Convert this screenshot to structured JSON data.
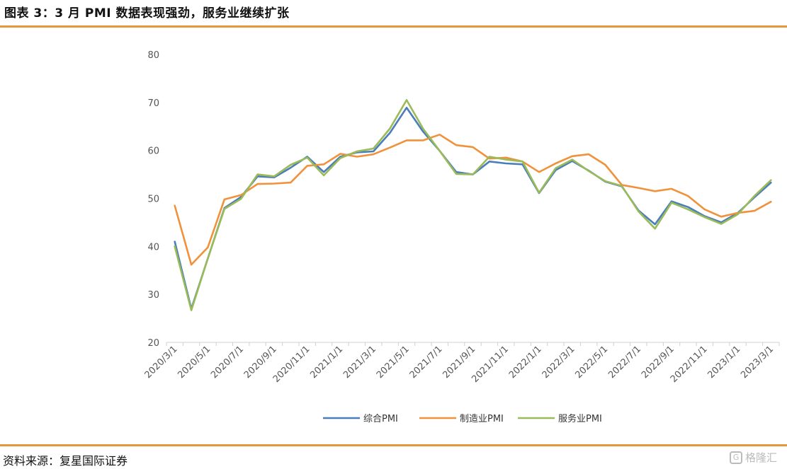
{
  "header": {
    "title": "图表 3：3 月 PMI 数据表现强劲，服务业继续扩张"
  },
  "footer": {
    "source": "资料来源：复星国际证券",
    "watermark": "格隆汇"
  },
  "chart_data": {
    "type": "line",
    "ylim": [
      20,
      80
    ],
    "yticks": [
      20,
      30,
      40,
      50,
      60,
      70,
      80
    ],
    "grid": false,
    "legend_position": "bottom",
    "x": [
      "2020/3/1",
      "2020/4/1",
      "2020/5/1",
      "2020/6/1",
      "2020/7/1",
      "2020/8/1",
      "2020/9/1",
      "2020/10/1",
      "2020/11/1",
      "2020/12/1",
      "2021/1/1",
      "2021/2/1",
      "2021/3/1",
      "2021/4/1",
      "2021/5/1",
      "2021/6/1",
      "2021/7/1",
      "2021/8/1",
      "2021/9/1",
      "2021/10/1",
      "2021/11/1",
      "2021/12/1",
      "2022/1/1",
      "2022/2/1",
      "2022/3/1",
      "2022/4/1",
      "2022/5/1",
      "2022/6/1",
      "2022/7/1",
      "2022/8/1",
      "2022/9/1",
      "2022/10/1",
      "2022/11/1",
      "2022/12/1",
      "2023/1/1",
      "2023/2/1",
      "2023/3/1"
    ],
    "xtick_labels": [
      "2020/3/1",
      "2020/5/1",
      "2020/7/1",
      "2020/9/1",
      "2020/11/1",
      "2021/1/1",
      "2021/3/1",
      "2021/5/1",
      "2021/7/1",
      "2021/9/1",
      "2021/11/1",
      "2022/1/1",
      "2022/3/1",
      "2022/5/1",
      "2022/7/1",
      "2022/9/1",
      "2022/11/1",
      "2023/1/1",
      "2023/3/1"
    ],
    "series": [
      {
        "name": "综合PMI",
        "color": "#4a7ebb",
        "values": [
          41.0,
          27.0,
          37.5,
          48.0,
          50.3,
          54.6,
          54.4,
          56.4,
          58.7,
          55.5,
          58.7,
          59.6,
          59.8,
          63.7,
          68.9,
          63.9,
          59.9,
          55.5,
          55.0,
          57.7,
          57.3,
          57.1,
          51.1,
          55.9,
          57.8,
          55.8,
          53.5,
          52.5,
          47.5,
          44.6,
          49.4,
          48.2,
          46.3,
          45.0,
          47.0,
          50.2,
          53.3
        ]
      },
      {
        "name": "制造业PMI",
        "color": "#f0923b",
        "values": [
          48.5,
          36.2,
          39.8,
          49.8,
          50.7,
          53.0,
          53.1,
          53.3,
          56.8,
          57.1,
          59.3,
          58.7,
          59.2,
          60.6,
          62.1,
          62.1,
          63.3,
          61.1,
          60.7,
          58.3,
          58.5,
          57.7,
          55.5,
          57.3,
          58.8,
          59.2,
          57.0,
          52.8,
          52.2,
          51.5,
          52.0,
          50.5,
          47.7,
          46.2,
          47.0,
          47.4,
          49.3
        ]
      },
      {
        "name": "服务业PMI",
        "color": "#9bbb59",
        "values": [
          40.0,
          26.7,
          37.5,
          47.8,
          49.9,
          55.0,
          54.6,
          57.0,
          58.5,
          54.8,
          58.4,
          59.8,
          60.4,
          64.6,
          70.5,
          64.5,
          59.9,
          55.1,
          55.0,
          58.7,
          58.1,
          57.7,
          51.2,
          56.3,
          58.1,
          55.7,
          53.6,
          52.6,
          47.3,
          43.7,
          49.1,
          47.7,
          46.1,
          44.7,
          46.7,
          50.5,
          53.8
        ]
      }
    ]
  }
}
